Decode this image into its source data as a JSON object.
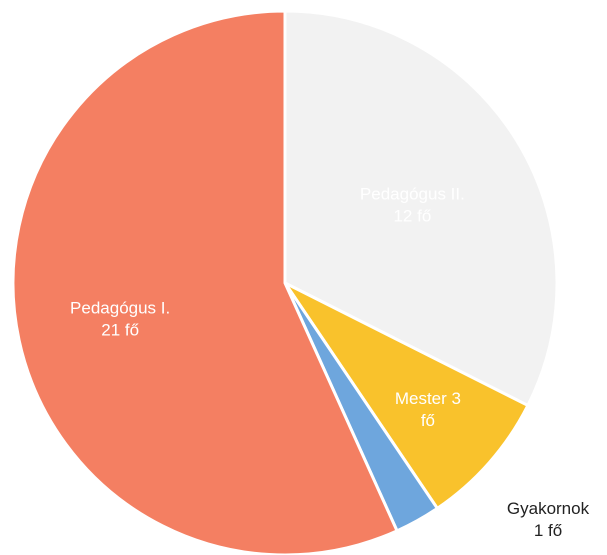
{
  "chart_data": {
    "type": "pie",
    "title": "",
    "start_angle_deg": 0,
    "direction": "clockwise",
    "slices": [
      {
        "category": "Pedagógus II.",
        "value": 12,
        "unit": "fő",
        "color": "#f2f2f2",
        "label_lines": [
          "Pedagógus II.",
          "12 fő"
        ]
      },
      {
        "category": "Mester",
        "value": 3,
        "unit": "fő",
        "color": "#f9c22c",
        "label_lines": [
          "Mester 3",
          "fő"
        ]
      },
      {
        "category": "Gyakornok",
        "value": 1,
        "unit": "fő",
        "color": "#6ea6dd",
        "label_lines": [
          "Gyakornok",
          "1 fő"
        ]
      },
      {
        "category": "Pedagógus I.",
        "value": 21,
        "unit": "fő",
        "color": "#f47f62",
        "label_lines": [
          "Pedagógus I.",
          "21 fő"
        ]
      }
    ]
  }
}
